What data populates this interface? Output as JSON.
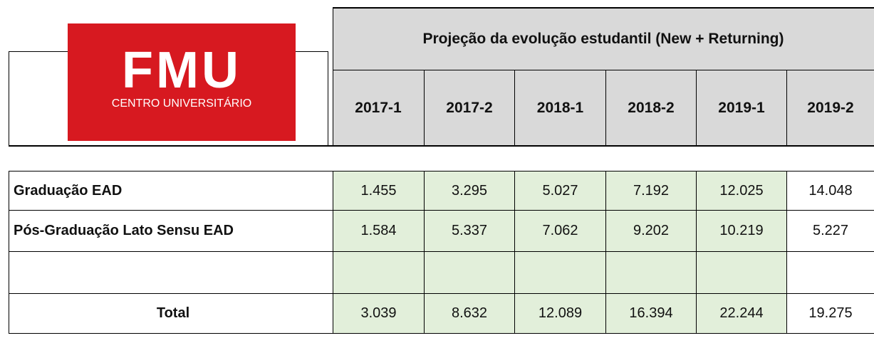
{
  "header": {
    "logo": {
      "name": "FMU",
      "subtitle": "CENTRO UNIVERSITÁRIO"
    },
    "title": "Projeção da evolução estudantil (New + Returning)",
    "years": [
      "2017-1",
      "2017-2",
      "2018-1",
      "2018-2",
      "2019-1",
      "2019-2"
    ]
  },
  "table": {
    "rows": [
      {
        "label": "Graduação EAD",
        "values": [
          "1.455",
          "3.295",
          "5.027",
          "7.192",
          "12.025",
          "14.048"
        ]
      },
      {
        "label": "Pós-Graduação Lato Sensu EAD",
        "values": [
          "1.584",
          "5.337",
          "7.062",
          "9.202",
          "10.219",
          "5.227"
        ]
      }
    ],
    "total": {
      "label": "Total",
      "values": [
        "3.039",
        "8.632",
        "12.089",
        "16.394",
        "22.244",
        "19.275"
      ]
    }
  }
}
